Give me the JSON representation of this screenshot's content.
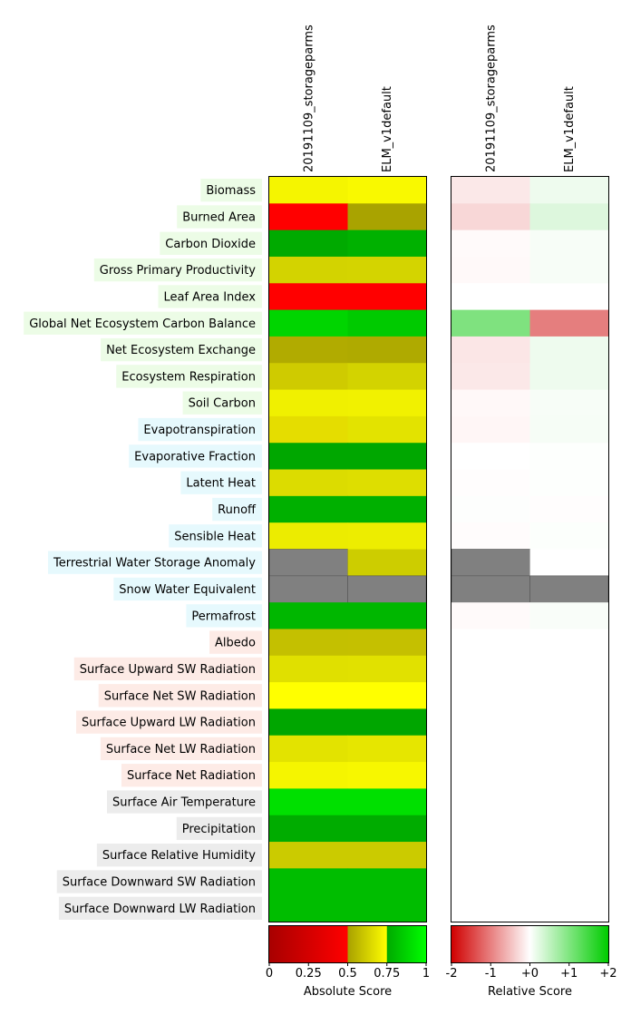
{
  "chart_data": {
    "type": "heatmap",
    "models": [
      "20191109_storageparms",
      "ELM_v1default"
    ],
    "category_colors": {
      "ecosystem": "#ecfce6",
      "hydrology": "#e6f9fd",
      "radiation": "#fdebe6",
      "forcing": "#ececec"
    },
    "rows": [
      {
        "label": "Biomass",
        "category": "ecosystem",
        "abs": [
          "#f5f500",
          "#f9f900"
        ],
        "rel": [
          "#fbe8e8",
          "#eefbee"
        ]
      },
      {
        "label": "Burned Area",
        "category": "ecosystem",
        "abs": [
          "#ff0000",
          "#a9a300"
        ],
        "rel": [
          "#f8d7d7",
          "#ddf7dd"
        ]
      },
      {
        "label": "Carbon Dioxide",
        "category": "ecosystem",
        "abs": [
          "#00aa00",
          "#00b100"
        ],
        "rel": [
          "#fffafa",
          "#f7fdf7"
        ]
      },
      {
        "label": "Gross Primary Productivity",
        "category": "ecosystem",
        "abs": [
          "#d3d300",
          "#d4d400"
        ],
        "rel": [
          "#fff9f9",
          "#f7fdf7"
        ]
      },
      {
        "label": "Leaf Area Index",
        "category": "ecosystem",
        "abs": [
          "#ff0000",
          "#ff0000"
        ],
        "rel": [
          "#ffffff",
          "#ffffff"
        ]
      },
      {
        "label": "Global Net Ecosystem Carbon Balance",
        "category": "ecosystem",
        "abs": [
          "#00d500",
          "#00ca00"
        ],
        "rel": [
          "#7fe27f",
          "#e57e7e"
        ]
      },
      {
        "label": "Net Ecosystem Exchange",
        "category": "ecosystem",
        "abs": [
          "#b1ab00",
          "#afaa00"
        ],
        "rel": [
          "#fbe6e6",
          "#eefbee"
        ]
      },
      {
        "label": "Ecosystem Respiration",
        "category": "ecosystem",
        "abs": [
          "#cfcb00",
          "#d3d300"
        ],
        "rel": [
          "#fbe8e8",
          "#eefbee"
        ]
      },
      {
        "label": "Soil Carbon",
        "category": "ecosystem",
        "abs": [
          "#f0f000",
          "#f1f100"
        ],
        "rel": [
          "#fff8f8",
          "#f7fdf7"
        ]
      },
      {
        "label": "Evapotranspiration",
        "category": "hydrology",
        "abs": [
          "#e5dd00",
          "#e3e300"
        ],
        "rel": [
          "#fff6f6",
          "#f6fdf6"
        ]
      },
      {
        "label": "Evaporative Fraction",
        "category": "hydrology",
        "abs": [
          "#00a700",
          "#00a700"
        ],
        "rel": [
          "#ffffff",
          "#fdfffd"
        ]
      },
      {
        "label": "Latent Heat",
        "category": "hydrology",
        "abs": [
          "#dcdc00",
          "#dede00"
        ],
        "rel": [
          "#fffdfd",
          "#fdfffd"
        ]
      },
      {
        "label": "Runoff",
        "category": "hydrology",
        "abs": [
          "#00b000",
          "#00b000"
        ],
        "rel": [
          "#fdfefd",
          "#fffdfd"
        ]
      },
      {
        "label": "Sensible Heat",
        "category": "hydrology",
        "abs": [
          "#ecec00",
          "#eded00"
        ],
        "rel": [
          "#fffcfc",
          "#fcfffc"
        ]
      },
      {
        "label": "Terrestrial Water Storage Anomaly",
        "category": "hydrology",
        "abs": [
          null,
          "#cdcd00"
        ],
        "rel": [
          null,
          "#ffffff"
        ]
      },
      {
        "label": "Snow Water Equivalent",
        "category": "hydrology",
        "abs": [
          null,
          null
        ],
        "rel": [
          null,
          null
        ]
      },
      {
        "label": "Permafrost",
        "category": "hydrology",
        "abs": [
          "#00b700",
          "#00b700"
        ],
        "rel": [
          "#fffafa",
          "#f9fdf9"
        ]
      },
      {
        "label": "Albedo",
        "category": "radiation",
        "abs": [
          "#c4c000",
          "#c5c000"
        ],
        "rel": [
          "#ffffff",
          "#ffffff"
        ]
      },
      {
        "label": "Surface Upward SW Radiation",
        "category": "radiation",
        "abs": [
          "#e0e000",
          "#e1e100"
        ],
        "rel": [
          "#ffffff",
          "#ffffff"
        ]
      },
      {
        "label": "Surface Net SW Radiation",
        "category": "radiation",
        "abs": [
          "#ffff00",
          "#ffff00"
        ],
        "rel": [
          "#ffffff",
          "#ffffff"
        ]
      },
      {
        "label": "Surface Upward LW Radiation",
        "category": "radiation",
        "abs": [
          "#00a600",
          "#00a600"
        ],
        "rel": [
          "#ffffff",
          "#ffffff"
        ]
      },
      {
        "label": "Surface Net LW Radiation",
        "category": "radiation",
        "abs": [
          "#e3e300",
          "#e6e600"
        ],
        "rel": [
          "#ffffff",
          "#ffffff"
        ]
      },
      {
        "label": "Surface Net Radiation",
        "category": "radiation",
        "abs": [
          "#f5f500",
          "#f7f700"
        ],
        "rel": [
          "#ffffff",
          "#ffffff"
        ]
      },
      {
        "label": "Surface Air Temperature",
        "category": "forcing",
        "abs": [
          "#00e000",
          "#00e000"
        ],
        "rel": [
          "#ffffff",
          "#ffffff"
        ]
      },
      {
        "label": "Precipitation",
        "category": "forcing",
        "abs": [
          "#00ac00",
          "#00ac00"
        ],
        "rel": [
          "#ffffff",
          "#ffffff"
        ]
      },
      {
        "label": "Surface Relative Humidity",
        "category": "forcing",
        "abs": [
          "#cbcb00",
          "#cbcb00"
        ],
        "rel": [
          "#ffffff",
          "#ffffff"
        ]
      },
      {
        "label": "Surface Downward SW Radiation",
        "category": "forcing",
        "abs": [
          "#00bd00",
          "#00bd00"
        ],
        "rel": [
          "#ffffff",
          "#ffffff"
        ]
      },
      {
        "label": "Surface Downward LW Radiation",
        "category": "forcing",
        "abs": [
          "#00bd00",
          "#00bd00"
        ],
        "rel": [
          "#ffffff",
          "#ffffff"
        ]
      }
    ],
    "missing_color": "#808080",
    "absolute_colorbar": {
      "label": "Absolute Score",
      "range": [
        0,
        1
      ],
      "ticks": [
        {
          "value": 0,
          "label": "0"
        },
        {
          "value": 0.25,
          "label": "0.25"
        },
        {
          "value": 0.5,
          "label": "0.5"
        },
        {
          "value": 0.75,
          "label": "0.75"
        },
        {
          "value": 1,
          "label": "1"
        }
      ],
      "segments": [
        {
          "from": 0,
          "to": 0.5,
          "colors": [
            "#a80000",
            "#ff0000"
          ]
        },
        {
          "from": 0.5,
          "to": 0.75,
          "colors": [
            "#a8a000",
            "#ffff00"
          ]
        },
        {
          "from": 0.75,
          "to": 1,
          "colors": [
            "#00a800",
            "#00ff00"
          ]
        }
      ]
    },
    "relative_colorbar": {
      "label": "Relative Score",
      "range": [
        -2,
        2
      ],
      "ticks": [
        {
          "value": -2,
          "label": "-2"
        },
        {
          "value": -1,
          "label": "-1"
        },
        {
          "value": 0,
          "label": "+0"
        },
        {
          "value": 1,
          "label": "+1"
        },
        {
          "value": 2,
          "label": "+2"
        }
      ],
      "colors": [
        "#d00000",
        "#ffffff",
        "#00cc00"
      ]
    }
  }
}
